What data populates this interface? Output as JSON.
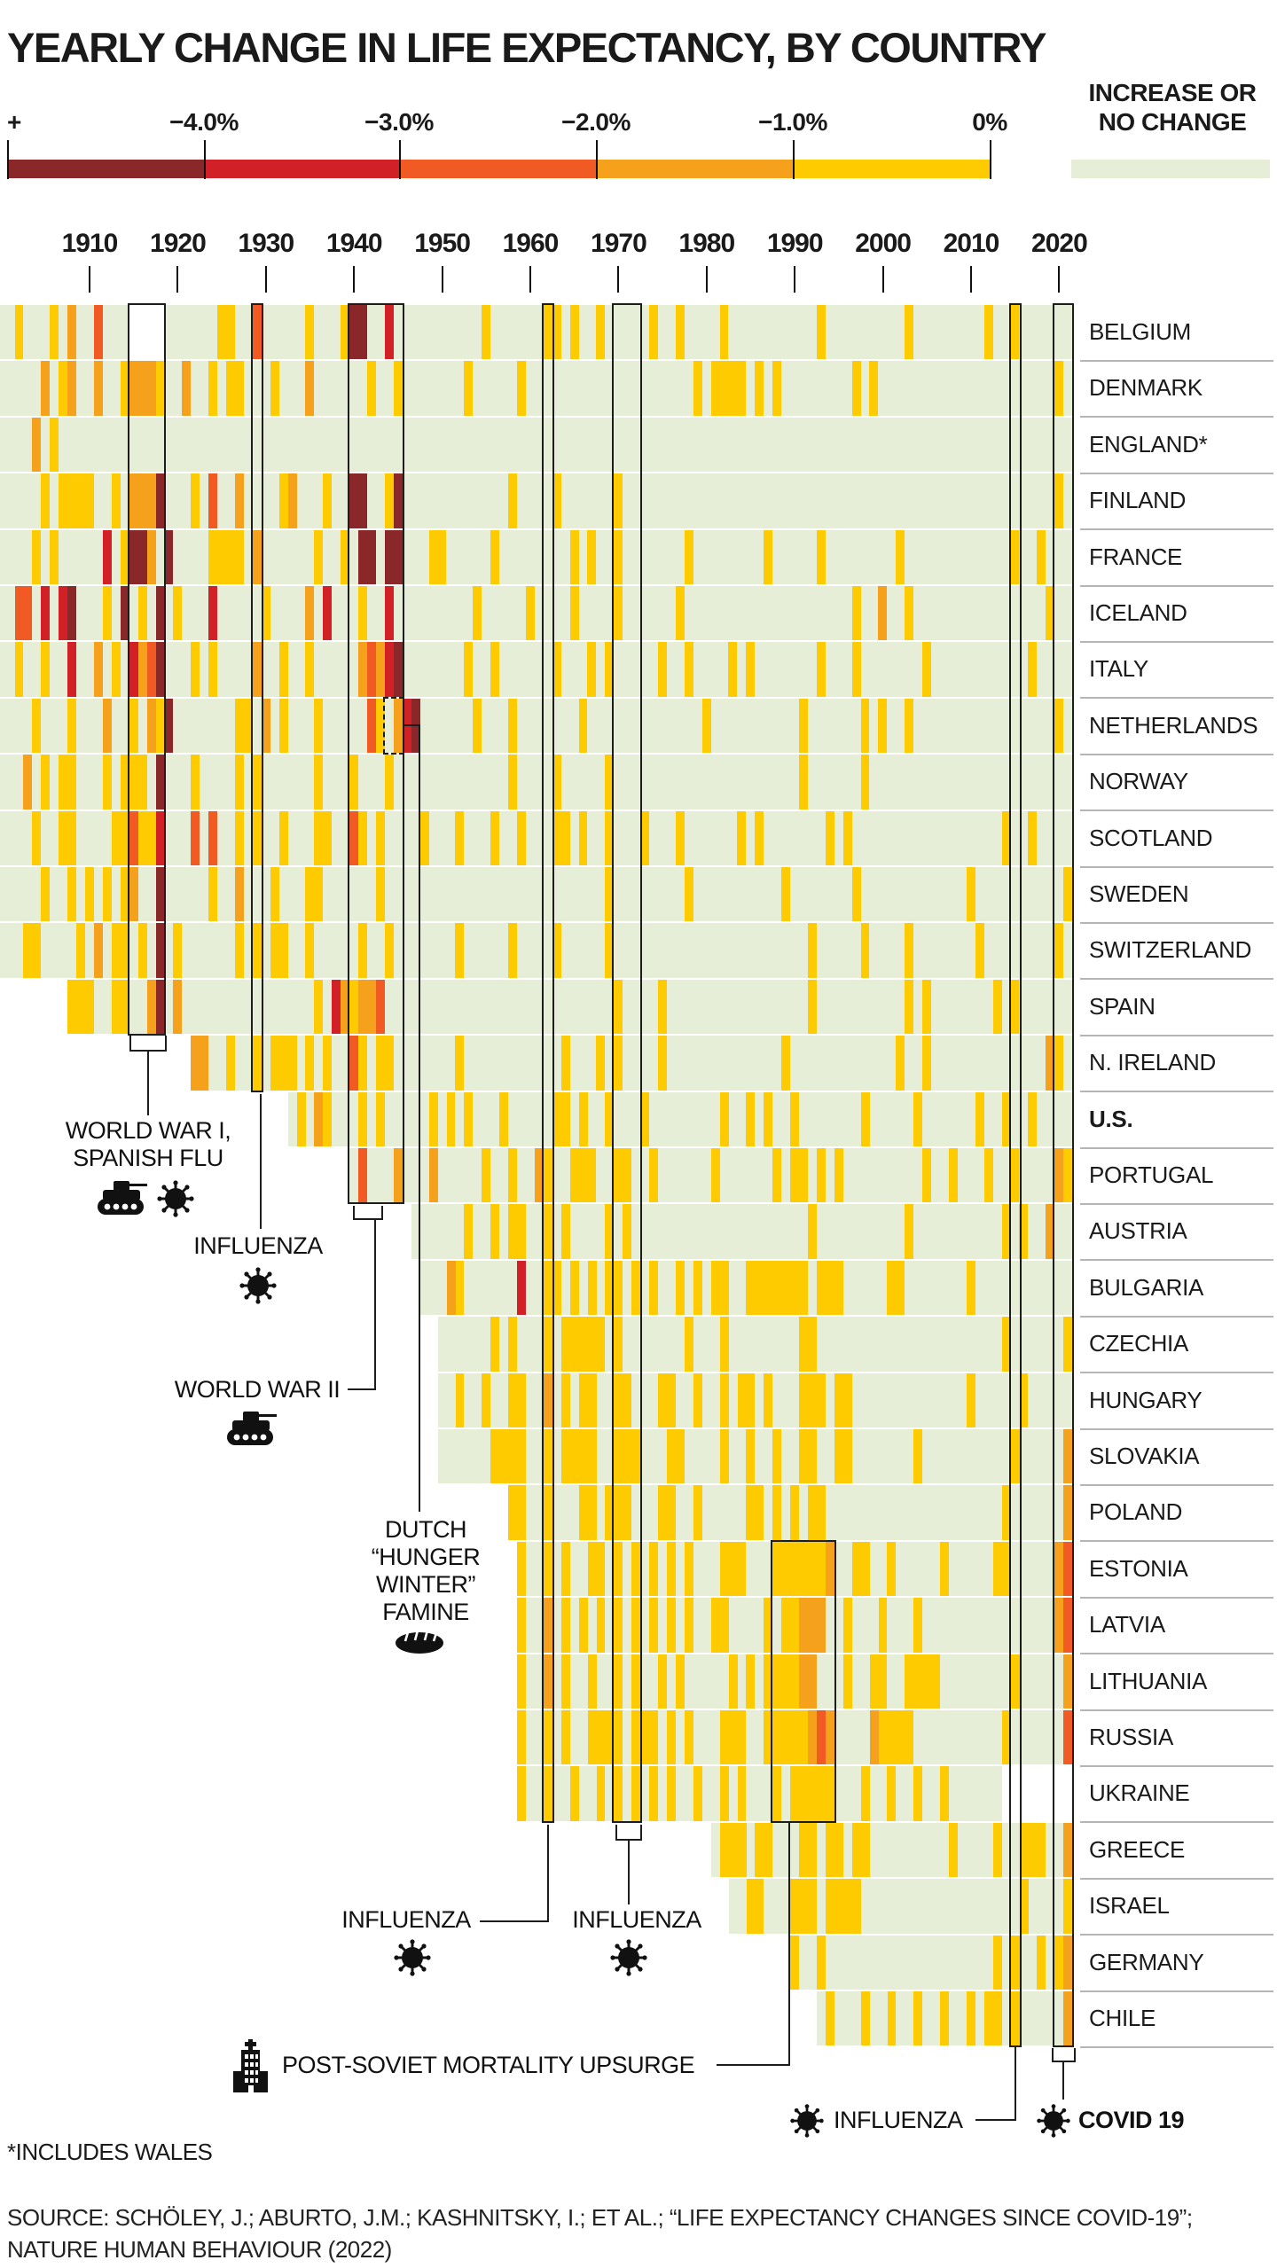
{
  "title": "YEARLY CHANGE IN LIFE EXPECTANCY, BY COUNTRY",
  "legend": {
    "tick_labels": [
      "+",
      "−4.0%",
      "−3.0%",
      "−2.0%",
      "−1.0%",
      "0%"
    ],
    "segment_colors": [
      "#8a2729",
      "#d22027",
      "#f15a22",
      "#f5a11c",
      "#fecb00"
    ],
    "increase_label_line1": "INCREASE OR",
    "increase_label_line2": "NO CHANGE",
    "increase_color": "#e7eed8"
  },
  "axis": {
    "decades": [
      "1910",
      "1920",
      "1930",
      "1940",
      "1950",
      "1960",
      "1970",
      "1980",
      "1990",
      "2000",
      "2010",
      "2020"
    ]
  },
  "annotations": {
    "ww1": {
      "line1": "WORLD WAR I,",
      "line2": "SPANISH FLU"
    },
    "flu1929": {
      "label": "INFLUENZA"
    },
    "ww2": {
      "label": "WORLD WAR II"
    },
    "famine": {
      "line1": "DUTCH",
      "line2": "“HUNGER",
      "line3": "WINTER”",
      "line4": "FAMINE"
    },
    "flu1962": {
      "label": "INFLUENZA"
    },
    "flu1970": {
      "label": "INFLUENZA"
    },
    "post_soviet": {
      "label": "POST-SOVIET MORTALITY UPSURGE"
    },
    "flu2015": {
      "label": "INFLUENZA"
    },
    "covid": {
      "label": "COVID 19"
    }
  },
  "footnote": "*INCLUDES WALES",
  "source_line1": "SOURCE: SCHÖLEY, J.; ABURTO, J.M.; KASHNITSKY, I.; ET AL.; “LIFE EXPECTANCY CHANGES SINCE COVID-19”;",
  "source_line2": "NATURE HUMAN BEHAVIOUR (2022)",
  "chart_data": {
    "type": "heatmap",
    "title": "Yearly change in life expectancy, by country",
    "x_range": [
      1900,
      2021
    ],
    "cell_unit": "one year",
    "value_classes": {
      "g": {
        "label": "increase or no change",
        "color": "#e7eed8"
      },
      "y": {
        "label": "0 to −1.0%",
        "color": "#fecb00"
      },
      "o": {
        "label": "−1.0 to −2.0%",
        "color": "#f5a11c"
      },
      "R": {
        "label": "−2.0 to −3.0%",
        "color": "#f15a22"
      },
      "r": {
        "label": "−3.0 to −4.0%",
        "color": "#d22027"
      },
      "d": {
        "label": "more than −4.0%",
        "color": "#8a2729"
      },
      "w": {
        "label": "no data",
        "color": "#ffffff"
      }
    },
    "countries": [
      {
        "name": "BELGIUM",
        "start": 1900,
        "cells": "ggygggygoggRgggwwwwggggggyyggRgggggygggyddggrggggggggggyggggggyygyggygggggyggyggggyggggggggggygggggggggyggggggggyggygggggOg"
      },
      {
        "name": "DENMARK",
        "start": 1900,
        "cells": "gggggogyoggoggyoooyggoggygyygggygggoggggggyggygggggggygggggygggggggggggggggggggygyyyygygyggggggggygyggggggggggggggggggggyggygggy"
      },
      {
        "name": "ENGLAND*",
        "start": 1900,
        "cells": "ggggogygggG"
      },
      {
        "name": "FINLAND",
        "start": 1900,
        "cells": "gggggygyyyyggygooodgggygRggoggggyogggyggddggydggggggggggggyggggyggggggygggggggggggggggggggggggggggggggggggggggggggggggggyg"
      },
      {
        "name": "FRANCE",
        "start": 1900,
        "cells": "ggggygygggggrgyddogdggggyyyygoggggggyggygddgddgggyygggggyggggggggygyggygggggggyggggggggygggggyggggggggyggggggggggggyggygggggog"
      },
      {
        "name": "ICELAND",
        "start": 1900,
        "cells": "ggRRgrgrdgggygdgygdgygggrgggggyggggogrgggyggrgggggggggygggggyggggyggggyggggggygggggggggggggggggggyggoggygggggggggggggggyggog"
      },
      {
        "name": "ITALY",
        "start": 1900,
        "cells": "ggyggyggrggogygroRdgggygyggggoggyggygggggoRordgggggggyggyggggggygggygygggggyggyggggygygggggggygggygggggggygggggggggggyggggOg"
      },
      {
        "name": "NETHERLANDS",
        "start": 1900,
        "cells": "ggggygggygggoggygoydgggggggyygogygggygggggRygordggggggygggygggggggygggggggggggggyggggggggggyggggggygyggyggggggggggggggggyggyggygOg"
      },
      {
        "name": "NORWAY",
        "start": 1900,
        "cells": "gggogygyygggygyyygdgggyggggygyggggggygggygggygggggggggggggyggggygggggygggggggggggggggggggggyggggggygggggggggggggggggggggggggyggg"
      },
      {
        "name": "SCOTLAND",
        "start": 1900,
        "cells": "ggggyggyyggggyyRyyrgggRgRggygyggygggyyggRygyggggygggygggyggygggyygyggygggygggyggggggygygggggggygygggggggggggggggggyggygggggOy"
      },
      {
        "name": "SWEDEN",
        "start": 1900,
        "cells": "gggggyggygygygyoggdgggggyggogggygggyyggggggygggggggggggggggggggggggggyggggggggyggggggggggygggggggyggggggggggggyggggggggggyggggog"
      },
      {
        "name": "SWITZERLAND",
        "start": 1900,
        "cells": "gggyyggggygogyygygdgyggggggygygyyggygggggyggygggggggyggggg yggggygggggyggggggggggggggggggggggygggggygggg ygggggggygggggg ggyggygggg og"
      },
      {
        "name": "SPAIN",
        "start": 1908,
        "cells": "yyyggyyggodgogggggggggggggggygroyooRggggggggggggggggggggggggggyggggyggggggggggggggggyggggggggggygygggggggygyggggggggyggyggygOg"
      },
      {
        "name": "N. IRELAND",
        "start": 1922,
        "cells": "ooggyggygyyygygyggRygyygggggggygggggggggggygggygyggggygggggggggggggyggggggggggggyggygggggggggggggoy"
      },
      {
        "name": "U.S.",
        "start": 1933,
        "cells": "gygoygggygygggggygygygggygggggyygyggygggyggggggggyggygyggygggggggygggggyggggggyggyggyggggggyygggOO"
      },
      {
        "name": "PORTUGAL",
        "start": 1940,
        "cells": "gRgggogggogggggyggyggoyggyyyggyyggyggggggyggggggygyygygygggggggggyggygggyggyggggoy"
      },
      {
        "name": "AUSTRIA",
        "start": 1947,
        "cells": "ggggggyggygyyggygyggggygyggggggggggggggggggggyggggggggggyggggggggggygyggog"
      },
      {
        "name": "BULGARIA",
        "start": 1948,
        "cells": "gggoyggggggrggyygygygyygygyggygygyyggyyyyyyygyyygggggyygggggggygggggggOO"
      },
      {
        "name": "CZECHIA",
        "start": 1950,
        "cells": "ggggggygygggygyyyyygygggggggygggyggggggggyygggggggggggggggggggggygggggOy"
      },
      {
        "name": "HUNGARY",
        "start": 1950,
        "cells": "ggyggyggyyggogygyyggyygggyyggyggygyygygggyyygyygggggggggggggygggggygggggOy"
      },
      {
        "name": "SLOVAKIA",
        "start": 1950,
        "cells": "ggggggyyyyggygyyyyggyyygggyyggggyggyggyggyyggyygggggggyggggggggggygggggoR"
      },
      {
        "name": "POLAND",
        "start": 1958,
        "cells": "yyggygggyygyyygggyyggygggggyygygygyyggggggggggggggggggggygggggOo"
      },
      {
        "name": "ESTONIA",
        "start": 1959,
        "cells": "yggygyggyygygygygygygggyyygggyyyyyyoggyyggygggggygggggyygggggoR"
      },
      {
        "name": "LATVIA",
        "start": 1959,
        "cells": "yggogygygygygygygygyggyygggg ygyyooogg ygggygggygggggggggggggggoR"
      },
      {
        "name": "LITHUANIA",
        "start": 1959,
        "cells": "yggogyggyggygyggygygggggygygyyyyoogggyggyyggyyyyggggggggygggggoR"
      },
      {
        "name": "RUSSIA",
        "start": 1959,
        "cells": "yggygyggyyyygyyygygygggyyyggyyyyyoRoggggoyyyyggggggggggygggggOR"
      },
      {
        "name": "UKRAINE",
        "start": 1959,
        "cells": "yggyggyggygygygygyggyggygygggygyyyyyggg ygg yggyggyggggggwwwwwwww"
      },
      {
        "name": "GREECE",
        "start": 1981,
        "cells": "gyyygyygggyygyygyygggggggggyggggyggyyyggoy"
      },
      {
        "name": "ISRAEL",
        "start": 1983,
        "cells": "ggyygggyyygyyyyggggggggggggggggggyggggyg"
      },
      {
        "name": "GERMANY",
        "start": 1990,
        "cells": "yggygggggggggggggggggggygyggygyo"
      },
      {
        "name": "CHILE",
        "start": 1993,
        "cells": "gygggyggyggyggyggygyygygggggoR"
      },
      {
        "name": "_note",
        "start": 0,
        "cells": ""
      }
    ],
    "events": [
      {
        "id": "wwi",
        "label": "WORLD WAR I, SPANISH FLU",
        "year_start": 1915,
        "year_end": 1918,
        "row_start": 0,
        "row_end": 12,
        "dashed": false
      },
      {
        "id": "flu1929",
        "label": "INFLUENZA",
        "year_start": 1929,
        "year_end": 1929,
        "row_start": 0,
        "row_end": 13,
        "dashed": false
      },
      {
        "id": "ww2",
        "label": "WORLD WAR II",
        "year_start": 1940,
        "year_end": 1945,
        "row_start": 0,
        "row_end": 15,
        "dashed": false
      },
      {
        "id": "famine",
        "label": "DUTCH “HUNGER WINTER” FAMINE",
        "year_start": 1944,
        "year_end": 1945,
        "row_start": 7,
        "row_end": 7,
        "dashed": true
      },
      {
        "id": "flu1962",
        "label": "INFLUENZA",
        "year_start": 1962,
        "year_end": 1962,
        "row_start": 0,
        "row_end": 26,
        "dashed": false
      },
      {
        "id": "flu1970",
        "label": "INFLUENZA",
        "year_start": 1970,
        "year_end": 1972,
        "row_start": 0,
        "row_end": 26,
        "dashed": false
      },
      {
        "id": "post_soviet",
        "label": "POST-SOVIET MORTALITY UPSURGE",
        "year_start": 1988,
        "year_end": 1994,
        "row_start": 22,
        "row_end": 26,
        "dashed": false
      },
      {
        "id": "flu2015",
        "label": "INFLUENZA",
        "year_start": 2015,
        "year_end": 2015,
        "row_start": 0,
        "row_end": 30,
        "dashed": false
      },
      {
        "id": "covid",
        "label": "COVID 19",
        "year_start": 2020,
        "year_end": 2021,
        "row_start": 0,
        "row_end": 30,
        "dashed": false
      }
    ],
    "bold_country": "U.S."
  }
}
